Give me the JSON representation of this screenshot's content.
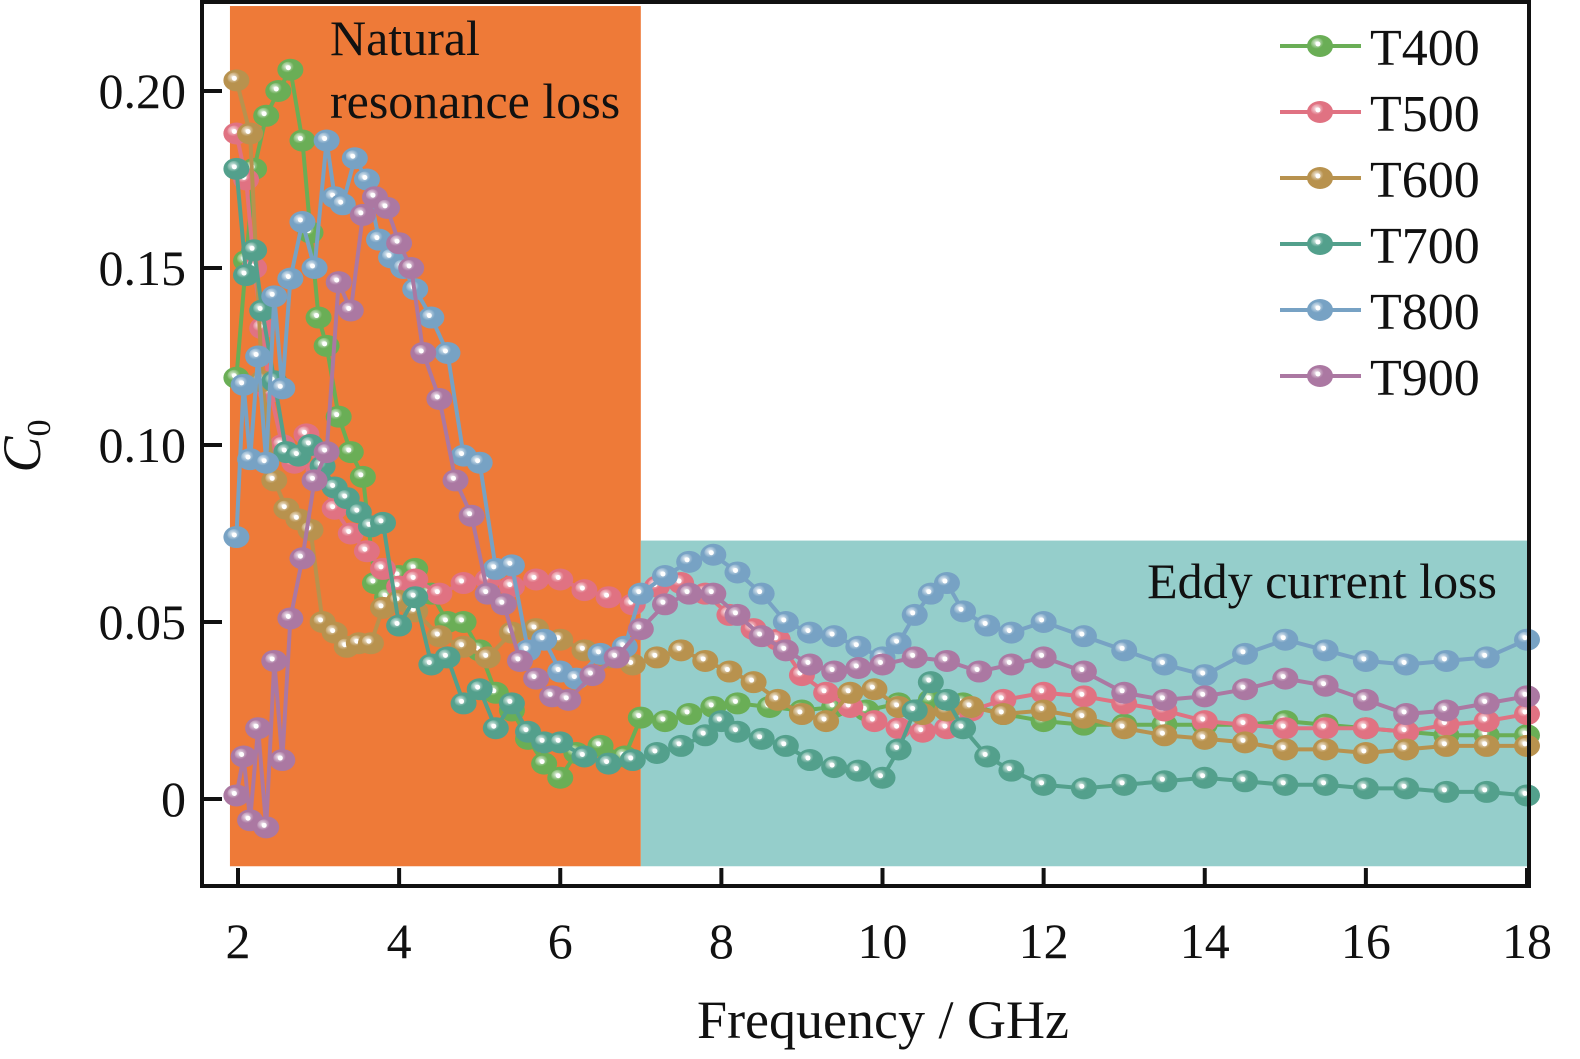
{
  "chart_data": {
    "type": "line",
    "title": "",
    "xlabel": "Frequency / GHz",
    "ylabel_main": "C",
    "ylabel_sub": "0",
    "xlim": [
      1.6,
      18.0
    ],
    "ylim": [
      -0.025,
      0.225
    ],
    "xticks": [
      2,
      4,
      6,
      8,
      10,
      12,
      14,
      16,
      18
    ],
    "xtick_labels": [
      "2",
      "4",
      "6",
      "8",
      "10",
      "12",
      "14",
      "16",
      "18"
    ],
    "yticks": [
      0,
      0.05,
      0.1,
      0.15,
      0.2
    ],
    "ytick_labels": [
      "0",
      "0.05",
      "0.10",
      "0.15",
      "0.20"
    ],
    "grid": false,
    "legend_position": "top-right",
    "regions": [
      {
        "label_lines": [
          "Natural",
          "resonance loss"
        ],
        "x_range": [
          1.9,
          7.0
        ],
        "y_range": [
          -0.019,
          0.224
        ],
        "color": "#EE7A38"
      },
      {
        "label_lines": [
          "Eddy current loss"
        ],
        "x_range": [
          7.0,
          18.0
        ],
        "y_range": [
          -0.019,
          0.073
        ],
        "color": "#95CECB"
      }
    ],
    "series": [
      {
        "name": "T400",
        "color": "#6AAE56",
        "x": [
          1.98,
          2.1,
          2.2,
          2.35,
          2.5,
          2.65,
          2.8,
          2.9,
          3.0,
          3.1,
          3.25,
          3.4,
          3.55,
          3.7,
          3.85,
          4.0,
          4.2,
          4.4,
          4.6,
          4.8,
          5.0,
          5.2,
          5.4,
          5.6,
          5.8,
          6.0,
          6.2,
          6.5,
          6.8,
          7.0,
          7.3,
          7.6,
          7.9,
          8.2,
          8.6,
          9.0,
          9.4,
          9.8,
          10.2,
          10.6,
          11.0,
          11.5,
          12.0,
          12.5,
          13.0,
          13.5,
          14.0,
          14.5,
          15.0,
          15.5,
          16.0,
          16.5,
          17.0,
          17.5,
          18.0
        ],
        "y": [
          0.119,
          0.152,
          0.178,
          0.193,
          0.2,
          0.206,
          0.186,
          0.16,
          0.136,
          0.128,
          0.108,
          0.098,
          0.091,
          0.061,
          0.057,
          0.063,
          0.065,
          0.058,
          0.05,
          0.05,
          0.042,
          0.03,
          0.025,
          0.017,
          0.01,
          0.006,
          0.013,
          0.015,
          0.012,
          0.023,
          0.022,
          0.024,
          0.026,
          0.027,
          0.026,
          0.025,
          0.026,
          0.025,
          0.027,
          0.028,
          0.027,
          0.024,
          0.022,
          0.021,
          0.021,
          0.021,
          0.021,
          0.021,
          0.022,
          0.021,
          0.02,
          0.019,
          0.018,
          0.018,
          0.018
        ]
      },
      {
        "name": "T500",
        "color": "#E07282",
        "x": [
          1.98,
          2.1,
          2.2,
          2.3,
          2.4,
          2.55,
          2.7,
          2.85,
          3.0,
          3.2,
          3.4,
          3.6,
          3.8,
          4.0,
          4.2,
          4.5,
          4.8,
          5.1,
          5.4,
          5.7,
          6.0,
          6.3,
          6.6,
          6.9,
          7.2,
          7.5,
          7.8,
          8.1,
          8.4,
          8.7,
          9.0,
          9.3,
          9.6,
          9.9,
          10.2,
          10.5,
          10.8,
          11.1,
          11.5,
          12.0,
          12.5,
          13.0,
          13.5,
          14.0,
          14.5,
          15.0,
          15.5,
          16.0,
          16.5,
          17.0,
          17.5,
          18.0
        ],
        "y": [
          0.188,
          0.175,
          0.15,
          0.133,
          0.115,
          0.1,
          0.095,
          0.103,
          0.093,
          0.082,
          0.075,
          0.07,
          0.065,
          0.06,
          0.062,
          0.058,
          0.061,
          0.062,
          0.06,
          0.062,
          0.062,
          0.059,
          0.057,
          0.055,
          0.06,
          0.061,
          0.058,
          0.052,
          0.048,
          0.045,
          0.035,
          0.03,
          0.026,
          0.022,
          0.02,
          0.019,
          0.02,
          0.025,
          0.028,
          0.03,
          0.029,
          0.027,
          0.025,
          0.022,
          0.021,
          0.02,
          0.02,
          0.02,
          0.019,
          0.021,
          0.022,
          0.024
        ]
      },
      {
        "name": "T600",
        "color": "#B8924E",
        "x": [
          1.98,
          2.15,
          2.3,
          2.45,
          2.6,
          2.75,
          2.9,
          3.05,
          3.2,
          3.35,
          3.5,
          3.65,
          3.8,
          4.0,
          4.2,
          4.5,
          4.8,
          5.1,
          5.4,
          5.7,
          6.0,
          6.3,
          6.6,
          6.9,
          7.2,
          7.5,
          7.8,
          8.1,
          8.4,
          8.7,
          9.0,
          9.3,
          9.6,
          9.9,
          10.2,
          10.5,
          10.8,
          11.1,
          11.5,
          12.0,
          12.5,
          13.0,
          13.5,
          14.0,
          14.5,
          15.0,
          15.5,
          16.0,
          16.5,
          17.0,
          17.5,
          18.0
        ],
        "y": [
          0.203,
          0.188,
          0.118,
          0.09,
          0.082,
          0.079,
          0.076,
          0.05,
          0.047,
          0.043,
          0.044,
          0.044,
          0.054,
          0.056,
          0.053,
          0.046,
          0.043,
          0.04,
          0.047,
          0.048,
          0.045,
          0.042,
          0.04,
          0.038,
          0.04,
          0.042,
          0.039,
          0.036,
          0.033,
          0.028,
          0.024,
          0.022,
          0.03,
          0.031,
          0.026,
          0.024,
          0.025,
          0.026,
          0.024,
          0.025,
          0.023,
          0.02,
          0.018,
          0.017,
          0.016,
          0.014,
          0.014,
          0.013,
          0.014,
          0.015,
          0.015,
          0.015
        ]
      },
      {
        "name": "T700",
        "color": "#53A08C",
        "x": [
          1.98,
          2.1,
          2.2,
          2.3,
          2.45,
          2.6,
          2.75,
          2.9,
          3.05,
          3.2,
          3.35,
          3.5,
          3.65,
          3.8,
          4.0,
          4.2,
          4.4,
          4.6,
          4.8,
          5.0,
          5.2,
          5.4,
          5.6,
          5.8,
          6.0,
          6.3,
          6.6,
          6.9,
          7.2,
          7.5,
          7.8,
          8.0,
          8.2,
          8.5,
          8.8,
          9.1,
          9.4,
          9.7,
          10.0,
          10.2,
          10.4,
          10.6,
          10.8,
          11.0,
          11.3,
          11.6,
          12.0,
          12.5,
          13.0,
          13.5,
          14.0,
          14.5,
          15.0,
          15.5,
          16.0,
          16.5,
          17.0,
          17.5,
          18.0
        ],
        "y": [
          0.178,
          0.148,
          0.155,
          0.138,
          0.118,
          0.098,
          0.097,
          0.1,
          0.094,
          0.088,
          0.085,
          0.081,
          0.077,
          0.078,
          0.049,
          0.057,
          0.038,
          0.04,
          0.027,
          0.031,
          0.02,
          0.027,
          0.019,
          0.016,
          0.016,
          0.012,
          0.01,
          0.011,
          0.013,
          0.015,
          0.018,
          0.022,
          0.019,
          0.017,
          0.015,
          0.011,
          0.009,
          0.008,
          0.006,
          0.014,
          0.025,
          0.033,
          0.028,
          0.02,
          0.012,
          0.008,
          0.004,
          0.003,
          0.004,
          0.005,
          0.006,
          0.005,
          0.004,
          0.004,
          0.003,
          0.003,
          0.002,
          0.002,
          0.001
        ]
      },
      {
        "name": "T800",
        "color": "#77A2C4",
        "x": [
          1.98,
          2.07,
          2.15,
          2.25,
          2.35,
          2.45,
          2.55,
          2.65,
          2.8,
          2.95,
          3.1,
          3.2,
          3.3,
          3.45,
          3.6,
          3.75,
          3.9,
          4.05,
          4.2,
          4.4,
          4.6,
          4.8,
          5.0,
          5.2,
          5.4,
          5.6,
          5.8,
          6.0,
          6.2,
          6.5,
          6.8,
          7.0,
          7.3,
          7.6,
          7.9,
          8.2,
          8.5,
          8.8,
          9.1,
          9.4,
          9.7,
          10.0,
          10.2,
          10.4,
          10.6,
          10.8,
          11.0,
          11.3,
          11.6,
          12.0,
          12.5,
          13.0,
          13.5,
          14.0,
          14.5,
          15.0,
          15.5,
          16.0,
          16.5,
          17.0,
          17.5,
          18.0
        ],
        "y": [
          0.074,
          0.117,
          0.096,
          0.125,
          0.095,
          0.142,
          0.116,
          0.147,
          0.163,
          0.15,
          0.186,
          0.17,
          0.168,
          0.181,
          0.175,
          0.158,
          0.153,
          0.15,
          0.144,
          0.136,
          0.126,
          0.097,
          0.095,
          0.065,
          0.066,
          0.042,
          0.045,
          0.036,
          0.034,
          0.041,
          0.043,
          0.058,
          0.063,
          0.067,
          0.069,
          0.064,
          0.058,
          0.05,
          0.047,
          0.046,
          0.043,
          0.04,
          0.044,
          0.052,
          0.058,
          0.061,
          0.053,
          0.049,
          0.047,
          0.05,
          0.046,
          0.042,
          0.038,
          0.035,
          0.041,
          0.045,
          0.042,
          0.039,
          0.038,
          0.039,
          0.04,
          0.045
        ]
      },
      {
        "name": "T900",
        "color": "#AB78A2",
        "x": [
          1.98,
          2.07,
          2.15,
          2.25,
          2.35,
          2.45,
          2.55,
          2.65,
          2.8,
          2.95,
          3.1,
          3.25,
          3.4,
          3.55,
          3.7,
          3.85,
          4.0,
          4.15,
          4.3,
          4.5,
          4.7,
          4.9,
          5.1,
          5.3,
          5.5,
          5.7,
          5.9,
          6.1,
          6.4,
          6.7,
          7.0,
          7.3,
          7.6,
          7.9,
          8.2,
          8.5,
          8.8,
          9.1,
          9.4,
          9.7,
          10.0,
          10.4,
          10.8,
          11.2,
          11.6,
          12.0,
          12.5,
          13.0,
          13.5,
          14.0,
          14.5,
          15.0,
          15.5,
          16.0,
          16.5,
          17.0,
          17.5,
          18.0
        ],
        "y": [
          0.001,
          0.012,
          -0.006,
          0.02,
          -0.008,
          0.039,
          0.011,
          0.051,
          0.068,
          0.09,
          0.098,
          0.146,
          0.138,
          0.165,
          0.17,
          0.167,
          0.157,
          0.15,
          0.126,
          0.113,
          0.09,
          0.08,
          0.058,
          0.055,
          0.039,
          0.034,
          0.029,
          0.028,
          0.035,
          0.04,
          0.048,
          0.055,
          0.058,
          0.058,
          0.052,
          0.046,
          0.042,
          0.038,
          0.036,
          0.037,
          0.038,
          0.04,
          0.039,
          0.036,
          0.038,
          0.04,
          0.036,
          0.03,
          0.028,
          0.029,
          0.031,
          0.034,
          0.032,
          0.028,
          0.024,
          0.025,
          0.027,
          0.029
        ]
      }
    ]
  }
}
